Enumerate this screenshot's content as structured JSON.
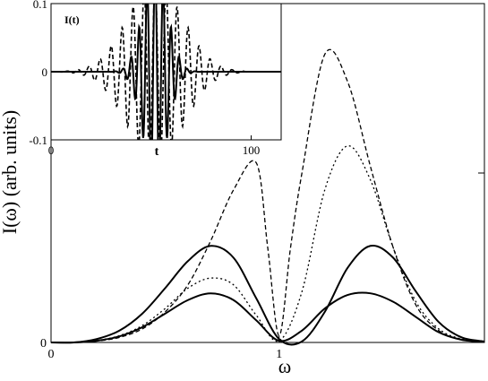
{
  "chart_data": [
    {
      "type": "line",
      "xlabel": "ω",
      "ylabel": "I(ω)  (arb. units)",
      "xlim": [
        0,
        1.9
      ],
      "ylim": [
        0,
        1.0
      ],
      "x_ticks": [
        {
          "value": 0,
          "label": "0"
        },
        {
          "value": 1,
          "label": "1"
        }
      ],
      "y_ticks": [
        {
          "value": 0,
          "label": "0"
        }
      ],
      "grid": false,
      "series": [
        {
          "style": "solid",
          "x": [
            0,
            0.1,
            0.2,
            0.3,
            0.4,
            0.5,
            0.6,
            0.7,
            0.8,
            0.9,
            1.0,
            1.1,
            1.2,
            1.3,
            1.4,
            1.5,
            1.6,
            1.7,
            1.8,
            1.9
          ],
          "y": [
            0,
            0.0,
            0.01,
            0.035,
            0.085,
            0.16,
            0.24,
            0.285,
            0.25,
            0.13,
            0.01,
            0.003,
            0.09,
            0.22,
            0.285,
            0.25,
            0.15,
            0.06,
            0.015,
            0.003
          ]
        },
        {
          "style": "solid",
          "x": [
            0,
            0.1,
            0.2,
            0.3,
            0.4,
            0.5,
            0.6,
            0.7,
            0.8,
            0.9,
            1.0,
            1.1,
            1.2,
            1.3,
            1.4,
            1.5,
            1.6,
            1.7,
            1.8,
            1.9
          ],
          "y": [
            0,
            0.0,
            0.005,
            0.018,
            0.045,
            0.085,
            0.125,
            0.145,
            0.125,
            0.065,
            0.005,
            0.035,
            0.1,
            0.14,
            0.145,
            0.12,
            0.075,
            0.03,
            0.008,
            0.002
          ]
        },
        {
          "style": "dotted",
          "x": [
            0,
            0.1,
            0.2,
            0.3,
            0.4,
            0.5,
            0.6,
            0.7,
            0.8,
            0.9,
            1.0,
            1.1,
            1.2,
            1.3,
            1.4,
            1.5,
            1.6,
            1.7,
            1.8,
            1.9
          ],
          "y": [
            0,
            0.0,
            0.006,
            0.02,
            0.05,
            0.1,
            0.16,
            0.19,
            0.17,
            0.08,
            0.005,
            0.15,
            0.45,
            0.58,
            0.48,
            0.28,
            0.12,
            0.04,
            0.01,
            0.002
          ]
        },
        {
          "style": "dashed",
          "x": [
            0,
            0.1,
            0.2,
            0.3,
            0.4,
            0.5,
            0.6,
            0.7,
            0.8,
            0.9,
            0.95,
            1.0,
            1.05,
            1.1,
            1.2,
            1.3,
            1.4,
            1.5,
            1.6,
            1.7,
            1.8,
            1.9
          ],
          "y": [
            0,
            0.0,
            0.004,
            0.015,
            0.04,
            0.09,
            0.17,
            0.3,
            0.45,
            0.53,
            0.28,
            0.02,
            0.28,
            0.5,
            0.85,
            0.77,
            0.52,
            0.28,
            0.11,
            0.035,
            0.008,
            0.002
          ]
        }
      ]
    },
    {
      "type": "line",
      "title": "I(t)",
      "xlabel": "t",
      "xlim": [
        0,
        115
      ],
      "ylim": [
        -0.1,
        0.1
      ],
      "x_ticks": [
        {
          "value": 0,
          "label": "0"
        },
        {
          "value": 100,
          "label": "100"
        }
      ],
      "y_ticks": [
        {
          "value": 0.1,
          "label": "0.1"
        },
        {
          "value": 0,
          "label": "0"
        },
        {
          "value": -0.1,
          "label": "-0.1"
        }
      ],
      "series": [
        {
          "style": "solid",
          "center": 52,
          "amplitude": 0.16,
          "width": 6,
          "period": 4
        },
        {
          "style": "dashed",
          "center": 52,
          "amplitude": 0.13,
          "width": 14,
          "period": 5.5
        }
      ]
    }
  ]
}
